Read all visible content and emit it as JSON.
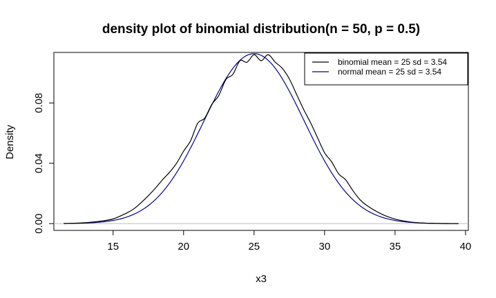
{
  "chart_data": {
    "type": "line",
    "title": "density plot of binomial distribution(n = 50, p = 0.5)",
    "xlabel": "x3",
    "ylabel": "Density",
    "xlim": [
      10.8,
      40.2
    ],
    "ylim": [
      -0.0045,
      0.1135
    ],
    "x_ticks": [
      15,
      20,
      25,
      30,
      35,
      40
    ],
    "x_tick_labels": [
      "15",
      "20",
      "25",
      "30",
      "35",
      "40"
    ],
    "y_ticks": [
      0.0,
      0.04,
      0.08
    ],
    "y_tick_labels": [
      "0.00",
      "0.04",
      "0.08"
    ],
    "baseline_y": 0,
    "legend_position": "top-right",
    "legend": [
      {
        "label": "binomial mean =  25 sd =  3.54",
        "color": "#000000"
      },
      {
        "label": "normal mean =  25 sd =  3.54",
        "color": "#00008b"
      }
    ],
    "series": [
      {
        "name": "binomial mean =  25 sd =  3.54",
        "color": "#000000",
        "x": [
          11.5,
          12,
          13,
          14,
          15,
          16,
          16.5,
          17,
          17.5,
          18,
          18.5,
          19,
          19.5,
          20,
          20.5,
          21,
          21.5,
          22,
          22.5,
          23,
          23.5,
          24,
          24.5,
          25,
          25.5,
          26,
          26.5,
          27,
          27.5,
          28,
          28.5,
          29,
          29.5,
          30,
          30.5,
          31,
          31.5,
          32,
          32.5,
          33,
          34,
          35,
          36,
          37,
          38,
          39,
          39.5
        ],
        "y": [
          0.0,
          0.0002,
          0.0006,
          0.0015,
          0.0031,
          0.0072,
          0.01,
          0.014,
          0.0185,
          0.0235,
          0.029,
          0.034,
          0.04,
          0.048,
          0.055,
          0.0665,
          0.07,
          0.079,
          0.085,
          0.0955,
          0.099,
          0.108,
          0.107,
          0.112,
          0.108,
          0.112,
          0.107,
          0.103,
          0.096,
          0.086,
          0.076,
          0.067,
          0.057,
          0.047,
          0.041,
          0.033,
          0.029,
          0.022,
          0.016,
          0.012,
          0.0065,
          0.003,
          0.0012,
          0.0004,
          0.0001,
          0.0,
          0.0
        ]
      },
      {
        "name": "normal mean =  25 sd =  3.54",
        "color": "#00008b",
        "mean": 25,
        "sd": 3.54,
        "x_range": [
          11.5,
          39.5
        ]
      }
    ]
  }
}
